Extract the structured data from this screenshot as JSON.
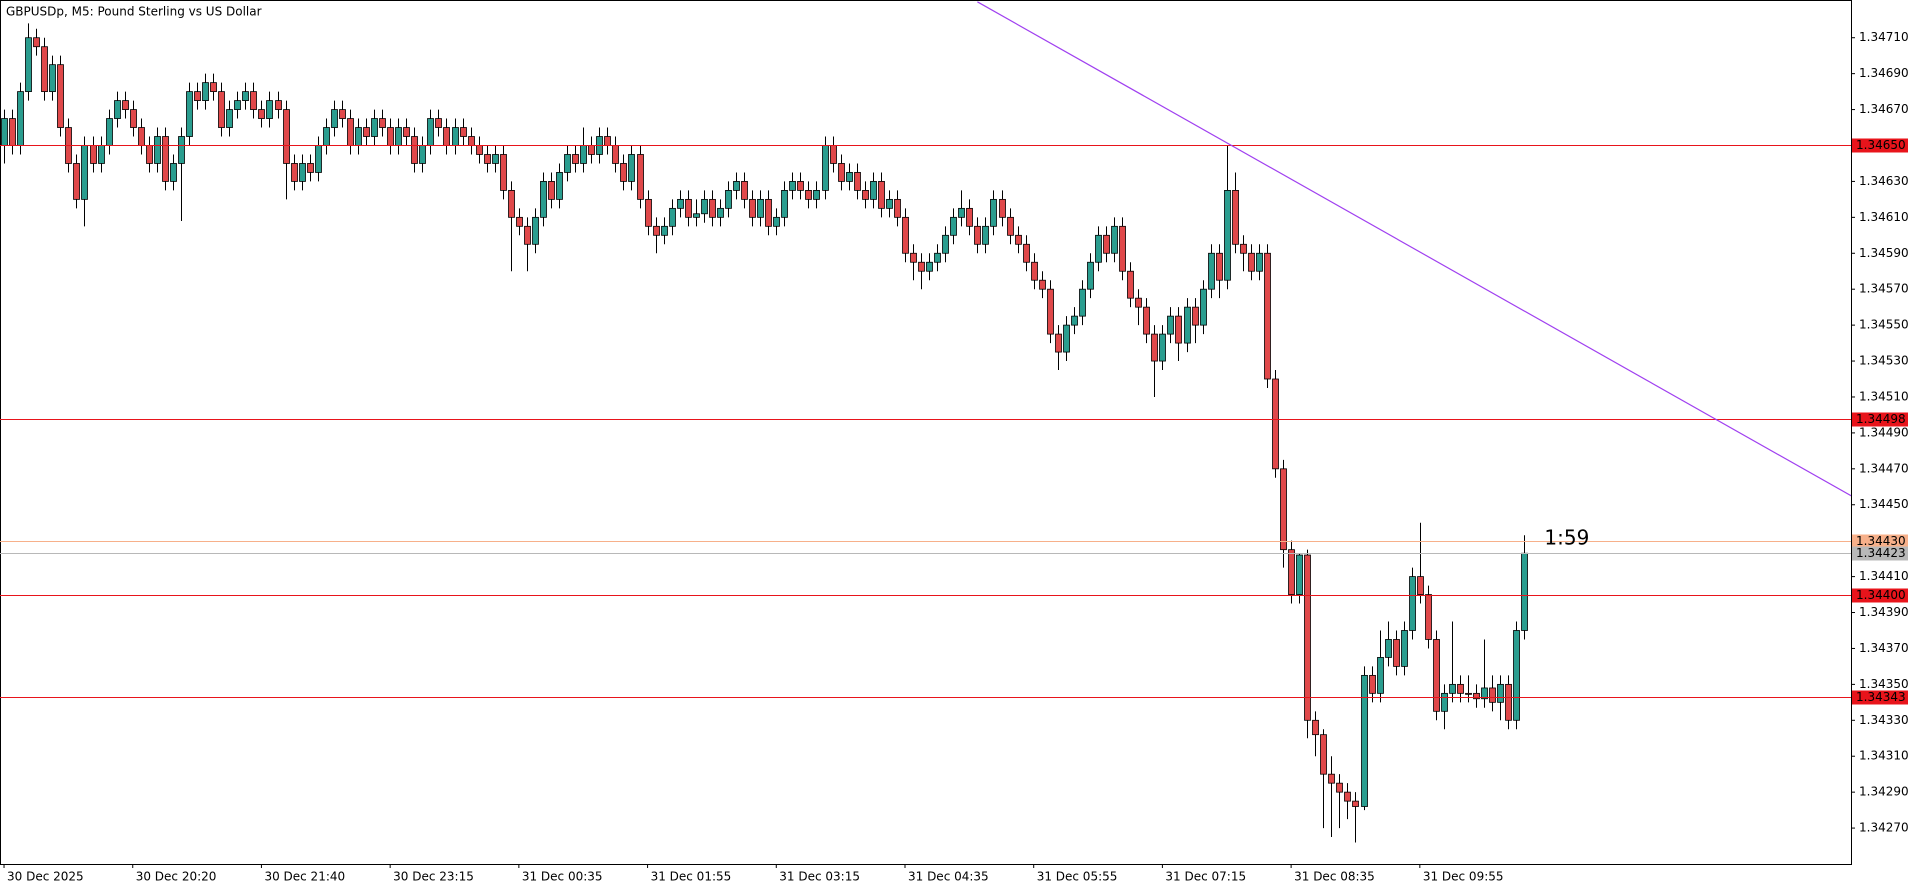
{
  "chart_data": {
    "type": "candlestick",
    "title": "GBPUSDp, M5:  Pound Sterling vs US Dollar",
    "countdown": "1:59",
    "up_color": "#2a9d8f",
    "down_color": "#e0484a",
    "xlim": [
      -0.5,
      229.6
    ],
    "ylim": [
      1.3425,
      1.34731
    ],
    "xticks": [
      {
        "value": 0,
        "label": "30 Dec 2025"
      },
      {
        "value": 16,
        "label": "30 Dec 20:20"
      },
      {
        "value": 32,
        "label": "30 Dec 21:40"
      },
      {
        "value": 48,
        "label": "30 Dec 23:15"
      },
      {
        "value": 64,
        "label": "31 Dec 00:35"
      },
      {
        "value": 80,
        "label": "31 Dec 01:55"
      },
      {
        "value": 96,
        "label": "31 Dec 03:15"
      },
      {
        "value": 112,
        "label": "31 Dec 04:35"
      },
      {
        "value": 128,
        "label": "31 Dec 05:55"
      },
      {
        "value": 144,
        "label": "31 Dec 07:15"
      },
      {
        "value": 160,
        "label": "31 Dec 08:35"
      },
      {
        "value": 176,
        "label": "31 Dec 09:55"
      }
    ],
    "yticks": [
      {
        "value": 1.3471,
        "label": "1.34710"
      },
      {
        "value": 1.3469,
        "label": "1.34690"
      },
      {
        "value": 1.3467,
        "label": "1.34670"
      },
      {
        "value": 1.3465,
        "label": "1.34650"
      },
      {
        "value": 1.3463,
        "label": "1.34630"
      },
      {
        "value": 1.3461,
        "label": "1.34610"
      },
      {
        "value": 1.3459,
        "label": "1.34590"
      },
      {
        "value": 1.3457,
        "label": "1.34570"
      },
      {
        "value": 1.3455,
        "label": "1.34550"
      },
      {
        "value": 1.3453,
        "label": "1.34530"
      },
      {
        "value": 1.3451,
        "label": "1.34510"
      },
      {
        "value": 1.3449,
        "label": "1.34490"
      },
      {
        "value": 1.3447,
        "label": "1.34470"
      },
      {
        "value": 1.3445,
        "label": "1.34450"
      },
      {
        "value": 1.3443,
        "label": "1.34430"
      },
      {
        "value": 1.3441,
        "label": "1.34410"
      },
      {
        "value": 1.3439,
        "label": "1.34390"
      },
      {
        "value": 1.3437,
        "label": "1.34370"
      },
      {
        "value": 1.3435,
        "label": "1.34350"
      },
      {
        "value": 1.3433,
        "label": "1.34330"
      },
      {
        "value": 1.3431,
        "label": "1.34310"
      },
      {
        "value": 1.3429,
        "label": "1.34290"
      },
      {
        "value": 1.3427,
        "label": "1.34270"
      }
    ],
    "price_lines": [
      {
        "value": 1.3465,
        "label": "1.34650",
        "color": "#e8141b"
      },
      {
        "value": 1.34498,
        "label": "1.34498",
        "color": "#e8141b"
      },
      {
        "value": 1.3443,
        "label": "1.34430",
        "color": "#f7b08a"
      },
      {
        "value": 1.34423,
        "label": "1.34423",
        "color": "#b8b8b8"
      },
      {
        "value": 1.344,
        "label": "1.34400",
        "color": "#e8141b"
      },
      {
        "value": 1.34343,
        "label": "1.34343",
        "color": "#e8141b"
      }
    ],
    "trendline": {
      "color": "#a040f0",
      "points": [
        [
          121,
          1.3473
        ],
        [
          230,
          1.34454
        ]
      ]
    },
    "open": [
      1.3465,
      1.34665,
      1.3465,
      1.3468,
      1.3471,
      1.34705,
      1.3468,
      1.34695,
      1.3466,
      1.3464,
      1.3462,
      1.3465,
      1.3464,
      1.3465,
      1.34665,
      1.34675,
      1.3467,
      1.3466,
      1.3465,
      1.3464,
      1.34655,
      1.3463,
      1.3464,
      1.34655,
      1.3468,
      1.34675,
      1.34685,
      1.3468,
      1.3466,
      1.3467,
      1.34675,
      1.3468,
      1.3467,
      1.34665,
      1.34675,
      1.3467,
      1.3464,
      1.3463,
      1.3464,
      1.34635,
      1.3465,
      1.3466,
      1.3467,
      1.34665,
      1.3465,
      1.3466,
      1.34655,
      1.34665,
      1.3466,
      1.3465,
      1.3466,
      1.34655,
      1.3464,
      1.3465,
      1.34665,
      1.3466,
      1.3465,
      1.3466,
      1.34655,
      1.3465,
      1.34645,
      1.3464,
      1.34645,
      1.34625,
      1.3461,
      1.34605,
      1.34595,
      1.3461,
      1.3463,
      1.3462,
      1.34635,
      1.34645,
      1.3464,
      1.3465,
      1.34645,
      1.34655,
      1.3465,
      1.3464,
      1.3463,
      1.34645,
      1.3462,
      1.34605,
      1.346,
      1.34605,
      1.34615,
      1.3462,
      1.3461,
      1.34612,
      1.3462,
      1.3461,
      1.34615,
      1.34625,
      1.3463,
      1.3462,
      1.3461,
      1.3462,
      1.34605,
      1.3461,
      1.34625,
      1.3463,
      1.34625,
      1.3462,
      1.34625,
      1.3465,
      1.3464,
      1.3463,
      1.34635,
      1.34625,
      1.3462,
      1.3463,
      1.34615,
      1.3462,
      1.3461,
      1.3459,
      1.34585,
      1.3458,
      1.34585,
      1.3459,
      1.346,
      1.3461,
      1.34615,
      1.34605,
      1.34595,
      1.34605,
      1.3462,
      1.3461,
      1.346,
      1.34595,
      1.34585,
      1.34575,
      1.3457,
      1.34545,
      1.34535,
      1.3455,
      1.34555,
      1.3457,
      1.34585,
      1.346,
      1.3459,
      1.34605,
      1.3458,
      1.34565,
      1.3456,
      1.34545,
      1.3453,
      1.34545,
      1.34555,
      1.3454,
      1.3456,
      1.3455,
      1.3457,
      1.3459,
      1.34575,
      1.34625,
      1.34595,
      1.3459,
      1.3458,
      1.3459,
      1.3452,
      1.3447,
      1.34425,
      1.344,
      1.34422,
      1.3433,
      1.34322,
      1.343,
      1.34295,
      1.3429,
      1.34285,
      1.34282,
      1.34355,
      1.34345,
      1.34365,
      1.34375,
      1.3436,
      1.3438,
      1.3441,
      1.344,
      1.34375,
      1.34335,
      1.34345,
      1.3435,
      1.34345,
      1.34345,
      1.34342,
      1.34348,
      1.3434,
      1.3435,
      1.3433,
      1.3438
    ],
    "high": [
      1.3467,
      1.3467,
      1.34685,
      1.34718,
      1.34715,
      1.3471,
      1.347,
      1.347,
      1.34665,
      1.34645,
      1.34655,
      1.34655,
      1.34655,
      1.3467,
      1.3468,
      1.3468,
      1.34675,
      1.34665,
      1.34655,
      1.3466,
      1.3466,
      1.34645,
      1.3466,
      1.34685,
      1.34685,
      1.3469,
      1.3469,
      1.34685,
      1.34675,
      1.3468,
      1.34685,
      1.34685,
      1.34675,
      1.3468,
      1.3468,
      1.34675,
      1.34645,
      1.34645,
      1.34645,
      1.34655,
      1.34665,
      1.34675,
      1.34675,
      1.3467,
      1.34665,
      1.34665,
      1.3467,
      1.3467,
      1.34665,
      1.34665,
      1.34665,
      1.3466,
      1.34655,
      1.3467,
      1.3467,
      1.34665,
      1.34665,
      1.34665,
      1.3466,
      1.34655,
      1.3465,
      1.3465,
      1.3465,
      1.3463,
      1.34615,
      1.3461,
      1.34615,
      1.34635,
      1.34635,
      1.3464,
      1.3465,
      1.3465,
      1.3466,
      1.34655,
      1.3466,
      1.3466,
      1.34655,
      1.34645,
      1.3465,
      1.3465,
      1.34625,
      1.3461,
      1.3461,
      1.3462,
      1.34625,
      1.34625,
      1.3462,
      1.34625,
      1.34625,
      1.3462,
      1.3463,
      1.34635,
      1.34635,
      1.34625,
      1.34625,
      1.34625,
      1.34615,
      1.3463,
      1.34635,
      1.34635,
      1.3463,
      1.3463,
      1.34655,
      1.34655,
      1.34645,
      1.3464,
      1.3464,
      1.3463,
      1.34635,
      1.34635,
      1.34625,
      1.34625,
      1.34615,
      1.34595,
      1.3459,
      1.3459,
      1.34595,
      1.34605,
      1.34615,
      1.34625,
      1.3462,
      1.3461,
      1.3461,
      1.34625,
      1.34625,
      1.34615,
      1.34605,
      1.346,
      1.3459,
      1.3458,
      1.34575,
      1.3455,
      1.34555,
      1.3456,
      1.34575,
      1.3459,
      1.34605,
      1.34605,
      1.3461,
      1.3461,
      1.34585,
      1.3457,
      1.34565,
      1.3455,
      1.3455,
      1.3456,
      1.3456,
      1.34565,
      1.34565,
      1.34575,
      1.34595,
      1.34595,
      1.3465,
      1.34635,
      1.346,
      1.34595,
      1.34595,
      1.34595,
      1.34525,
      1.34475,
      1.3443,
      1.34423,
      1.34425,
      1.34335,
      1.34325,
      1.3431,
      1.343,
      1.34295,
      1.3429,
      1.3436,
      1.3436,
      1.3438,
      1.34385,
      1.3438,
      1.34385,
      1.34415,
      1.3444,
      1.34405,
      1.3438,
      1.3435,
      1.34385,
      1.34355,
      1.34355,
      1.3435,
      1.34375,
      1.34355,
      1.34355,
      1.34355,
      1.34385,
      1.34433
    ],
    "low": [
      1.3464,
      1.34645,
      1.34645,
      1.34675,
      1.347,
      1.34675,
      1.34675,
      1.34655,
      1.34635,
      1.34615,
      1.34605,
      1.34635,
      1.34635,
      1.34645,
      1.3466,
      1.34665,
      1.34655,
      1.34645,
      1.34635,
      1.34635,
      1.34625,
      1.34625,
      1.34608,
      1.3465,
      1.3467,
      1.3467,
      1.34675,
      1.34655,
      1.34655,
      1.34665,
      1.3467,
      1.34665,
      1.3466,
      1.3466,
      1.34665,
      1.3462,
      1.34625,
      1.34625,
      1.3463,
      1.3463,
      1.34645,
      1.34655,
      1.3466,
      1.34645,
      1.34645,
      1.3465,
      1.3465,
      1.34655,
      1.34645,
      1.34645,
      1.3465,
      1.34635,
      1.34635,
      1.34645,
      1.34655,
      1.34645,
      1.34645,
      1.3465,
      1.34645,
      1.3464,
      1.34635,
      1.34635,
      1.3462,
      1.3458,
      1.346,
      1.3458,
      1.3459,
      1.34605,
      1.34615,
      1.34615,
      1.3463,
      1.34635,
      1.34635,
      1.3464,
      1.3464,
      1.34645,
      1.34635,
      1.34625,
      1.34625,
      1.34615,
      1.346,
      1.3459,
      1.34595,
      1.346,
      1.3461,
      1.34605,
      1.34605,
      1.34607,
      1.34605,
      1.34605,
      1.3461,
      1.3462,
      1.34615,
      1.34605,
      1.34605,
      1.346,
      1.346,
      1.34605,
      1.3462,
      1.3462,
      1.34615,
      1.34615,
      1.3462,
      1.34635,
      1.34625,
      1.34625,
      1.3462,
      1.34615,
      1.34615,
      1.3461,
      1.3461,
      1.34605,
      1.34585,
      1.34575,
      1.3457,
      1.34575,
      1.3458,
      1.34585,
      1.34595,
      1.34605,
      1.346,
      1.3459,
      1.3459,
      1.346,
      1.34605,
      1.34595,
      1.3459,
      1.3458,
      1.3457,
      1.34565,
      1.3454,
      1.34525,
      1.3453,
      1.34545,
      1.3455,
      1.34565,
      1.3458,
      1.34585,
      1.34585,
      1.34575,
      1.3456,
      1.3455,
      1.3454,
      1.3451,
      1.34525,
      1.3454,
      1.3453,
      1.34535,
      1.3454,
      1.34545,
      1.34565,
      1.34565,
      1.3457,
      1.3459,
      1.3458,
      1.34575,
      1.34575,
      1.34515,
      1.34465,
      1.34415,
      1.34395,
      1.34395,
      1.3432,
      1.3431,
      1.3427,
      1.34265,
      1.3427,
      1.34275,
      1.34262,
      1.3428,
      1.3434,
      1.3434,
      1.3436,
      1.34355,
      1.34355,
      1.34375,
      1.34395,
      1.3437,
      1.3433,
      1.34325,
      1.3434,
      1.3434,
      1.3434,
      1.34337,
      1.34337,
      1.34335,
      1.3433,
      1.34325,
      1.34325,
      1.34375
    ],
    "close": [
      1.34665,
      1.3465,
      1.3468,
      1.3471,
      1.34705,
      1.3468,
      1.34695,
      1.3466,
      1.3464,
      1.3462,
      1.3465,
      1.3464,
      1.3465,
      1.34665,
      1.34675,
      1.3467,
      1.3466,
      1.3465,
      1.3464,
      1.34655,
      1.3463,
      1.3464,
      1.34655,
      1.3468,
      1.34675,
      1.34685,
      1.3468,
      1.3466,
      1.3467,
      1.34675,
      1.3468,
      1.3467,
      1.34665,
      1.34675,
      1.3467,
      1.3464,
      1.3463,
      1.3464,
      1.34635,
      1.3465,
      1.3466,
      1.3467,
      1.34665,
      1.3465,
      1.3466,
      1.34655,
      1.34665,
      1.3466,
      1.3465,
      1.3466,
      1.34655,
      1.3464,
      1.3465,
      1.34665,
      1.3466,
      1.3465,
      1.3466,
      1.34655,
      1.3465,
      1.34645,
      1.3464,
      1.34645,
      1.34625,
      1.3461,
      1.34605,
      1.34595,
      1.3461,
      1.3463,
      1.3462,
      1.34635,
      1.34645,
      1.3464,
      1.3465,
      1.34645,
      1.34655,
      1.3465,
      1.3464,
      1.3463,
      1.34645,
      1.3462,
      1.34605,
      1.346,
      1.34605,
      1.34615,
      1.3462,
      1.3461,
      1.34612,
      1.3462,
      1.3461,
      1.34615,
      1.34625,
      1.3463,
      1.3462,
      1.3461,
      1.3462,
      1.34605,
      1.3461,
      1.34625,
      1.3463,
      1.34625,
      1.3462,
      1.34625,
      1.3465,
      1.3464,
      1.3463,
      1.34635,
      1.34625,
      1.3462,
      1.3463,
      1.34615,
      1.3462,
      1.3461,
      1.3459,
      1.34585,
      1.3458,
      1.34585,
      1.3459,
      1.346,
      1.3461,
      1.34615,
      1.34605,
      1.34595,
      1.34605,
      1.3462,
      1.3461,
      1.346,
      1.34595,
      1.34585,
      1.34575,
      1.3457,
      1.34545,
      1.34535,
      1.3455,
      1.34555,
      1.3457,
      1.34585,
      1.346,
      1.3459,
      1.34605,
      1.3458,
      1.34565,
      1.3456,
      1.34545,
      1.3453,
      1.34545,
      1.34555,
      1.3454,
      1.3456,
      1.3455,
      1.3457,
      1.3459,
      1.34575,
      1.34625,
      1.34595,
      1.3459,
      1.3458,
      1.3459,
      1.3452,
      1.3447,
      1.34425,
      1.344,
      1.34422,
      1.3433,
      1.34322,
      1.343,
      1.34295,
      1.3429,
      1.34285,
      1.34282,
      1.34355,
      1.34345,
      1.34365,
      1.34375,
      1.3436,
      1.3438,
      1.3441,
      1.344,
      1.34375,
      1.34335,
      1.34345,
      1.3435,
      1.34345,
      1.34345,
      1.34342,
      1.34348,
      1.3434,
      1.3435,
      1.3433,
      1.3438,
      1.34423
    ]
  }
}
